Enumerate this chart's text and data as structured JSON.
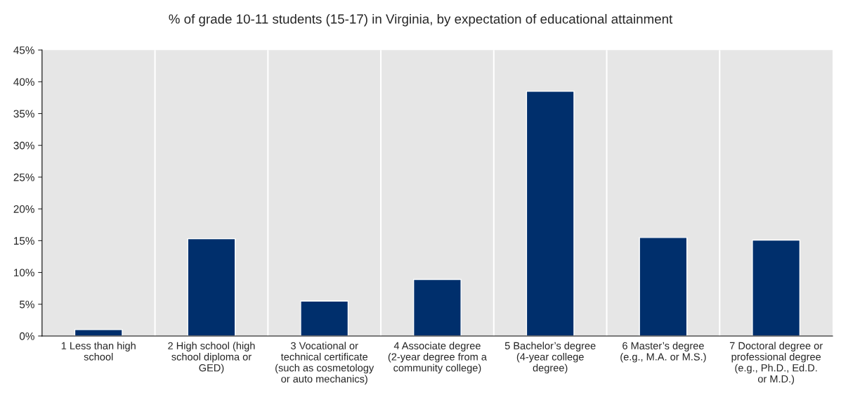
{
  "chart_data": {
    "type": "bar",
    "title": "% of grade 10-11 students (15-17) in Virginia, by expectation of educational attainment",
    "categories": [
      "1 Less than high school",
      "2 High school (high school diploma or GED)",
      "3 Vocational or technical certificate (such as cosmetology or auto mechanics)",
      "4 Associate degree (2-year degree from a community college)",
      "5 Bachelor’s degree (4-year college degree)",
      "6 Master’s degree (e.g., M.A. or M.S.)",
      "7 Doctoral degree or professional degree (e.g., Ph.D., Ed.D. or M.D.)"
    ],
    "values": [
      1.0,
      15.3,
      5.5,
      8.9,
      38.5,
      15.5,
      15.1
    ],
    "color": "#002f6c",
    "ylim": [
      0,
      45
    ],
    "yticks": [
      {
        "value": 0,
        "label": "0%"
      },
      {
        "value": 5,
        "label": "5%"
      },
      {
        "value": 10,
        "label": "10%"
      },
      {
        "value": 15,
        "label": "15%"
      },
      {
        "value": 20,
        "label": "20%"
      },
      {
        "value": 25,
        "label": "25%"
      },
      {
        "value": 30,
        "label": "30%"
      },
      {
        "value": 35,
        "label": "35%"
      },
      {
        "value": 40,
        "label": "40%"
      },
      {
        "value": 45,
        "label": "45%"
      }
    ],
    "grid": "x"
  }
}
